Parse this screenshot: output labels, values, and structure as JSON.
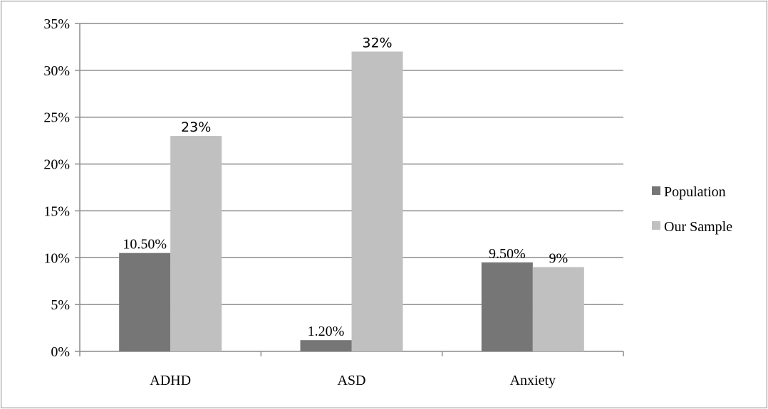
{
  "chart_data": {
    "type": "bar",
    "categories": [
      "ADHD",
      "ASD",
      "Anxiety"
    ],
    "series": [
      {
        "name": "Population",
        "values": [
          10.5,
          1.2,
          9.5
        ],
        "labels": [
          "10.50%",
          "1.20%",
          "9.50%"
        ],
        "color": "#767676"
      },
      {
        "name": "Our Sample",
        "values": [
          23,
          32,
          9
        ],
        "labels": [
          "23%",
          "32%",
          "9%"
        ],
        "color": "#c0c0c0"
      }
    ],
    "ylim": [
      0,
      35
    ],
    "y_ticks": [
      0,
      5,
      10,
      15,
      20,
      25,
      30,
      35
    ],
    "y_tick_labels": [
      "0%",
      "5%",
      "10%",
      "15%",
      "20%",
      "25%",
      "30%",
      "35%"
    ],
    "grid": true,
    "legend_position": "right",
    "title": "",
    "xlabel": "",
    "ylabel": ""
  }
}
